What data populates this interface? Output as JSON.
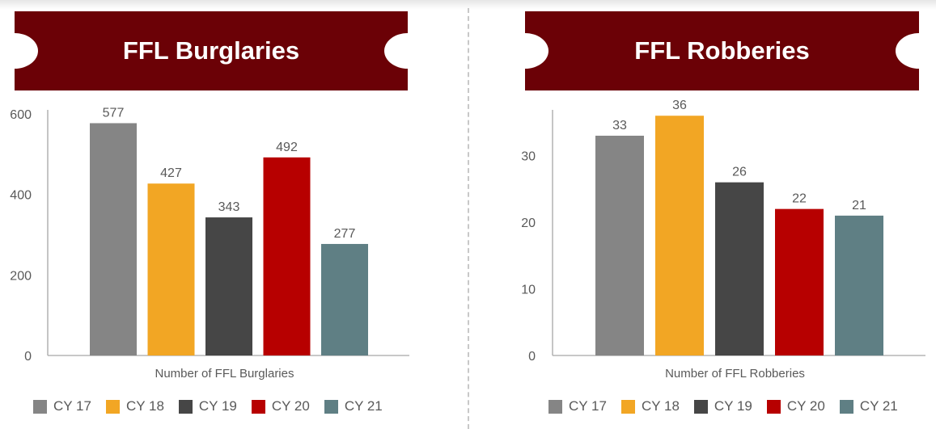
{
  "chart_data": [
    {
      "type": "bar",
      "title": "FFL Burglaries",
      "xlabel": "Number of FFL Burglaries",
      "ylabel": "",
      "ylim": [
        0,
        600
      ],
      "yticks": [
        0,
        200,
        400,
        600
      ],
      "categories": [
        "CY 17",
        "CY 18",
        "CY 19",
        "CY 20",
        "CY 21"
      ],
      "values": [
        577,
        427,
        343,
        492,
        277
      ],
      "data_labels": [
        "577",
        "427",
        "343",
        "492",
        "277"
      ],
      "grid": false,
      "legend_position": "bottom"
    },
    {
      "type": "bar",
      "title": "FFL Robberies",
      "xlabel": "Number of FFL Robberies",
      "ylabel": "",
      "ylim": [
        0,
        37
      ],
      "yticks": [
        0,
        10,
        20,
        30
      ],
      "categories": [
        "CY 17",
        "CY 18",
        "CY 19",
        "CY 20",
        "CY 21"
      ],
      "values": [
        33,
        36,
        26,
        22,
        21
      ],
      "data_labels": [
        "33",
        "36",
        "26",
        "22",
        "21"
      ],
      "grid": false,
      "legend_position": "bottom"
    }
  ],
  "legend": [
    "CY 17",
    "CY 18",
    "CY 19",
    "CY 20",
    "CY 21"
  ],
  "colors": {
    "CY 17": "#858585",
    "CY 18": "#f2a624",
    "CY 19": "#464646",
    "CY 20": "#b70000",
    "CY 21": "#5f7f84",
    "banner": "#6b0106",
    "axis": "#a6a6a6",
    "label_text": "#595959"
  }
}
